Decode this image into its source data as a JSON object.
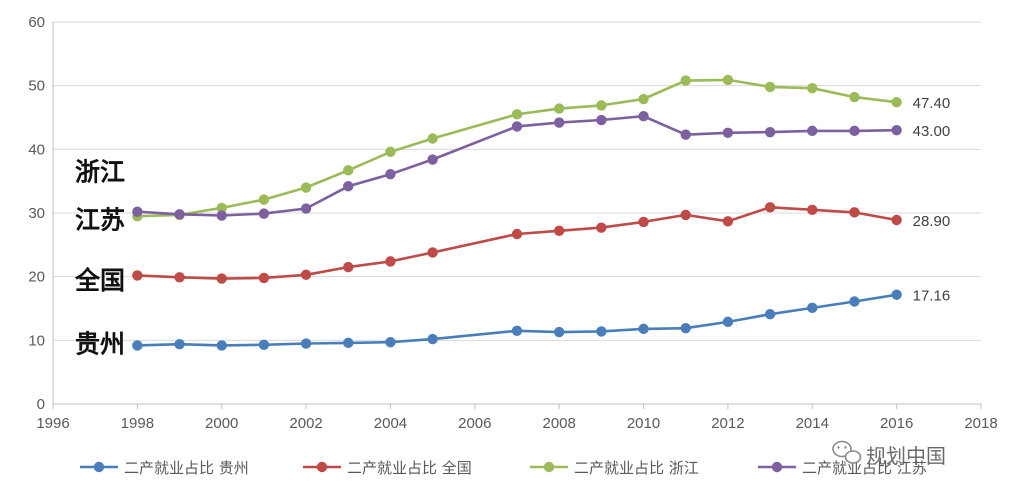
{
  "chart_data": {
    "type": "line",
    "title": "",
    "xlabel": "",
    "ylabel": "",
    "xlim": [
      1996,
      2018
    ],
    "ylim": [
      0,
      60
    ],
    "x_ticks": [
      1996,
      1998,
      2000,
      2002,
      2004,
      2006,
      2008,
      2010,
      2012,
      2014,
      2016,
      2018
    ],
    "y_ticks": [
      0,
      10,
      20,
      30,
      40,
      50,
      60
    ],
    "grid": "horizontal",
    "legend_position": "bottom",
    "series": [
      {
        "name": "二产就业占比 贵州",
        "color": "#4a7ebb",
        "points": [
          [
            1998,
            9.2
          ],
          [
            1999,
            9.4
          ],
          [
            2000,
            9.2
          ],
          [
            2001,
            9.3
          ],
          [
            2002,
            9.5
          ],
          [
            2003,
            9.6
          ],
          [
            2004,
            9.7
          ],
          [
            2005,
            10.2
          ],
          [
            2007,
            11.5
          ],
          [
            2008,
            11.3
          ],
          [
            2009,
            11.4
          ],
          [
            2010,
            11.8
          ],
          [
            2011,
            11.9
          ],
          [
            2012,
            12.9
          ],
          [
            2013,
            14.1
          ],
          [
            2014,
            15.1
          ],
          [
            2015,
            16.1
          ],
          [
            2016,
            17.16
          ]
        ],
        "end_label": "17.16"
      },
      {
        "name": "二产就业占比 全国",
        "color": "#be4b48",
        "points": [
          [
            1998,
            20.2
          ],
          [
            1999,
            19.9
          ],
          [
            2000,
            19.7
          ],
          [
            2001,
            19.8
          ],
          [
            2002,
            20.3
          ],
          [
            2003,
            21.5
          ],
          [
            2004,
            22.4
          ],
          [
            2005,
            23.8
          ],
          [
            2007,
            26.7
          ],
          [
            2008,
            27.2
          ],
          [
            2009,
            27.7
          ],
          [
            2010,
            28.6
          ],
          [
            2011,
            29.7
          ],
          [
            2012,
            28.7
          ],
          [
            2013,
            30.9
          ],
          [
            2014,
            30.5
          ],
          [
            2015,
            30.1
          ],
          [
            2016,
            28.9
          ]
        ],
        "end_label": "28.90"
      },
      {
        "name": "二产就业占比 浙江",
        "color": "#9bbb59",
        "points": [
          [
            1998,
            29.5
          ],
          [
            1999,
            29.7
          ],
          [
            2000,
            30.8
          ],
          [
            2001,
            32.1
          ],
          [
            2002,
            34.0
          ],
          [
            2003,
            36.7
          ],
          [
            2004,
            39.6
          ],
          [
            2005,
            41.7
          ],
          [
            2007,
            45.5
          ],
          [
            2008,
            46.4
          ],
          [
            2009,
            46.9
          ],
          [
            2010,
            47.9
          ],
          [
            2011,
            50.8
          ],
          [
            2012,
            50.9
          ],
          [
            2013,
            49.8
          ],
          [
            2014,
            49.6
          ],
          [
            2015,
            48.2
          ],
          [
            2016,
            47.4
          ]
        ],
        "end_label": "47.40"
      },
      {
        "name": "二产就业占比 江苏",
        "color": "#7d60a0",
        "points": [
          [
            1998,
            30.2
          ],
          [
            1999,
            29.8
          ],
          [
            2000,
            29.6
          ],
          [
            2001,
            29.9
          ],
          [
            2002,
            30.7
          ],
          [
            2003,
            34.2
          ],
          [
            2004,
            36.1
          ],
          [
            2005,
            38.4
          ],
          [
            2007,
            43.6
          ],
          [
            2008,
            44.2
          ],
          [
            2009,
            44.6
          ],
          [
            2010,
            45.2
          ],
          [
            2011,
            42.3
          ],
          [
            2012,
            42.6
          ],
          [
            2013,
            42.7
          ],
          [
            2014,
            42.9
          ],
          [
            2015,
            42.9
          ],
          [
            2016,
            43.0
          ]
        ],
        "end_label": "43.00"
      }
    ],
    "annotations": [
      {
        "text": "浙江",
        "y": 36.5
      },
      {
        "text": "江苏",
        "y": 29.0
      },
      {
        "text": "全国",
        "y": 19.5
      },
      {
        "text": "贵州",
        "y": 9.5
      }
    ]
  },
  "watermark": {
    "icon": "wechat-icon",
    "text": "规划中国"
  }
}
